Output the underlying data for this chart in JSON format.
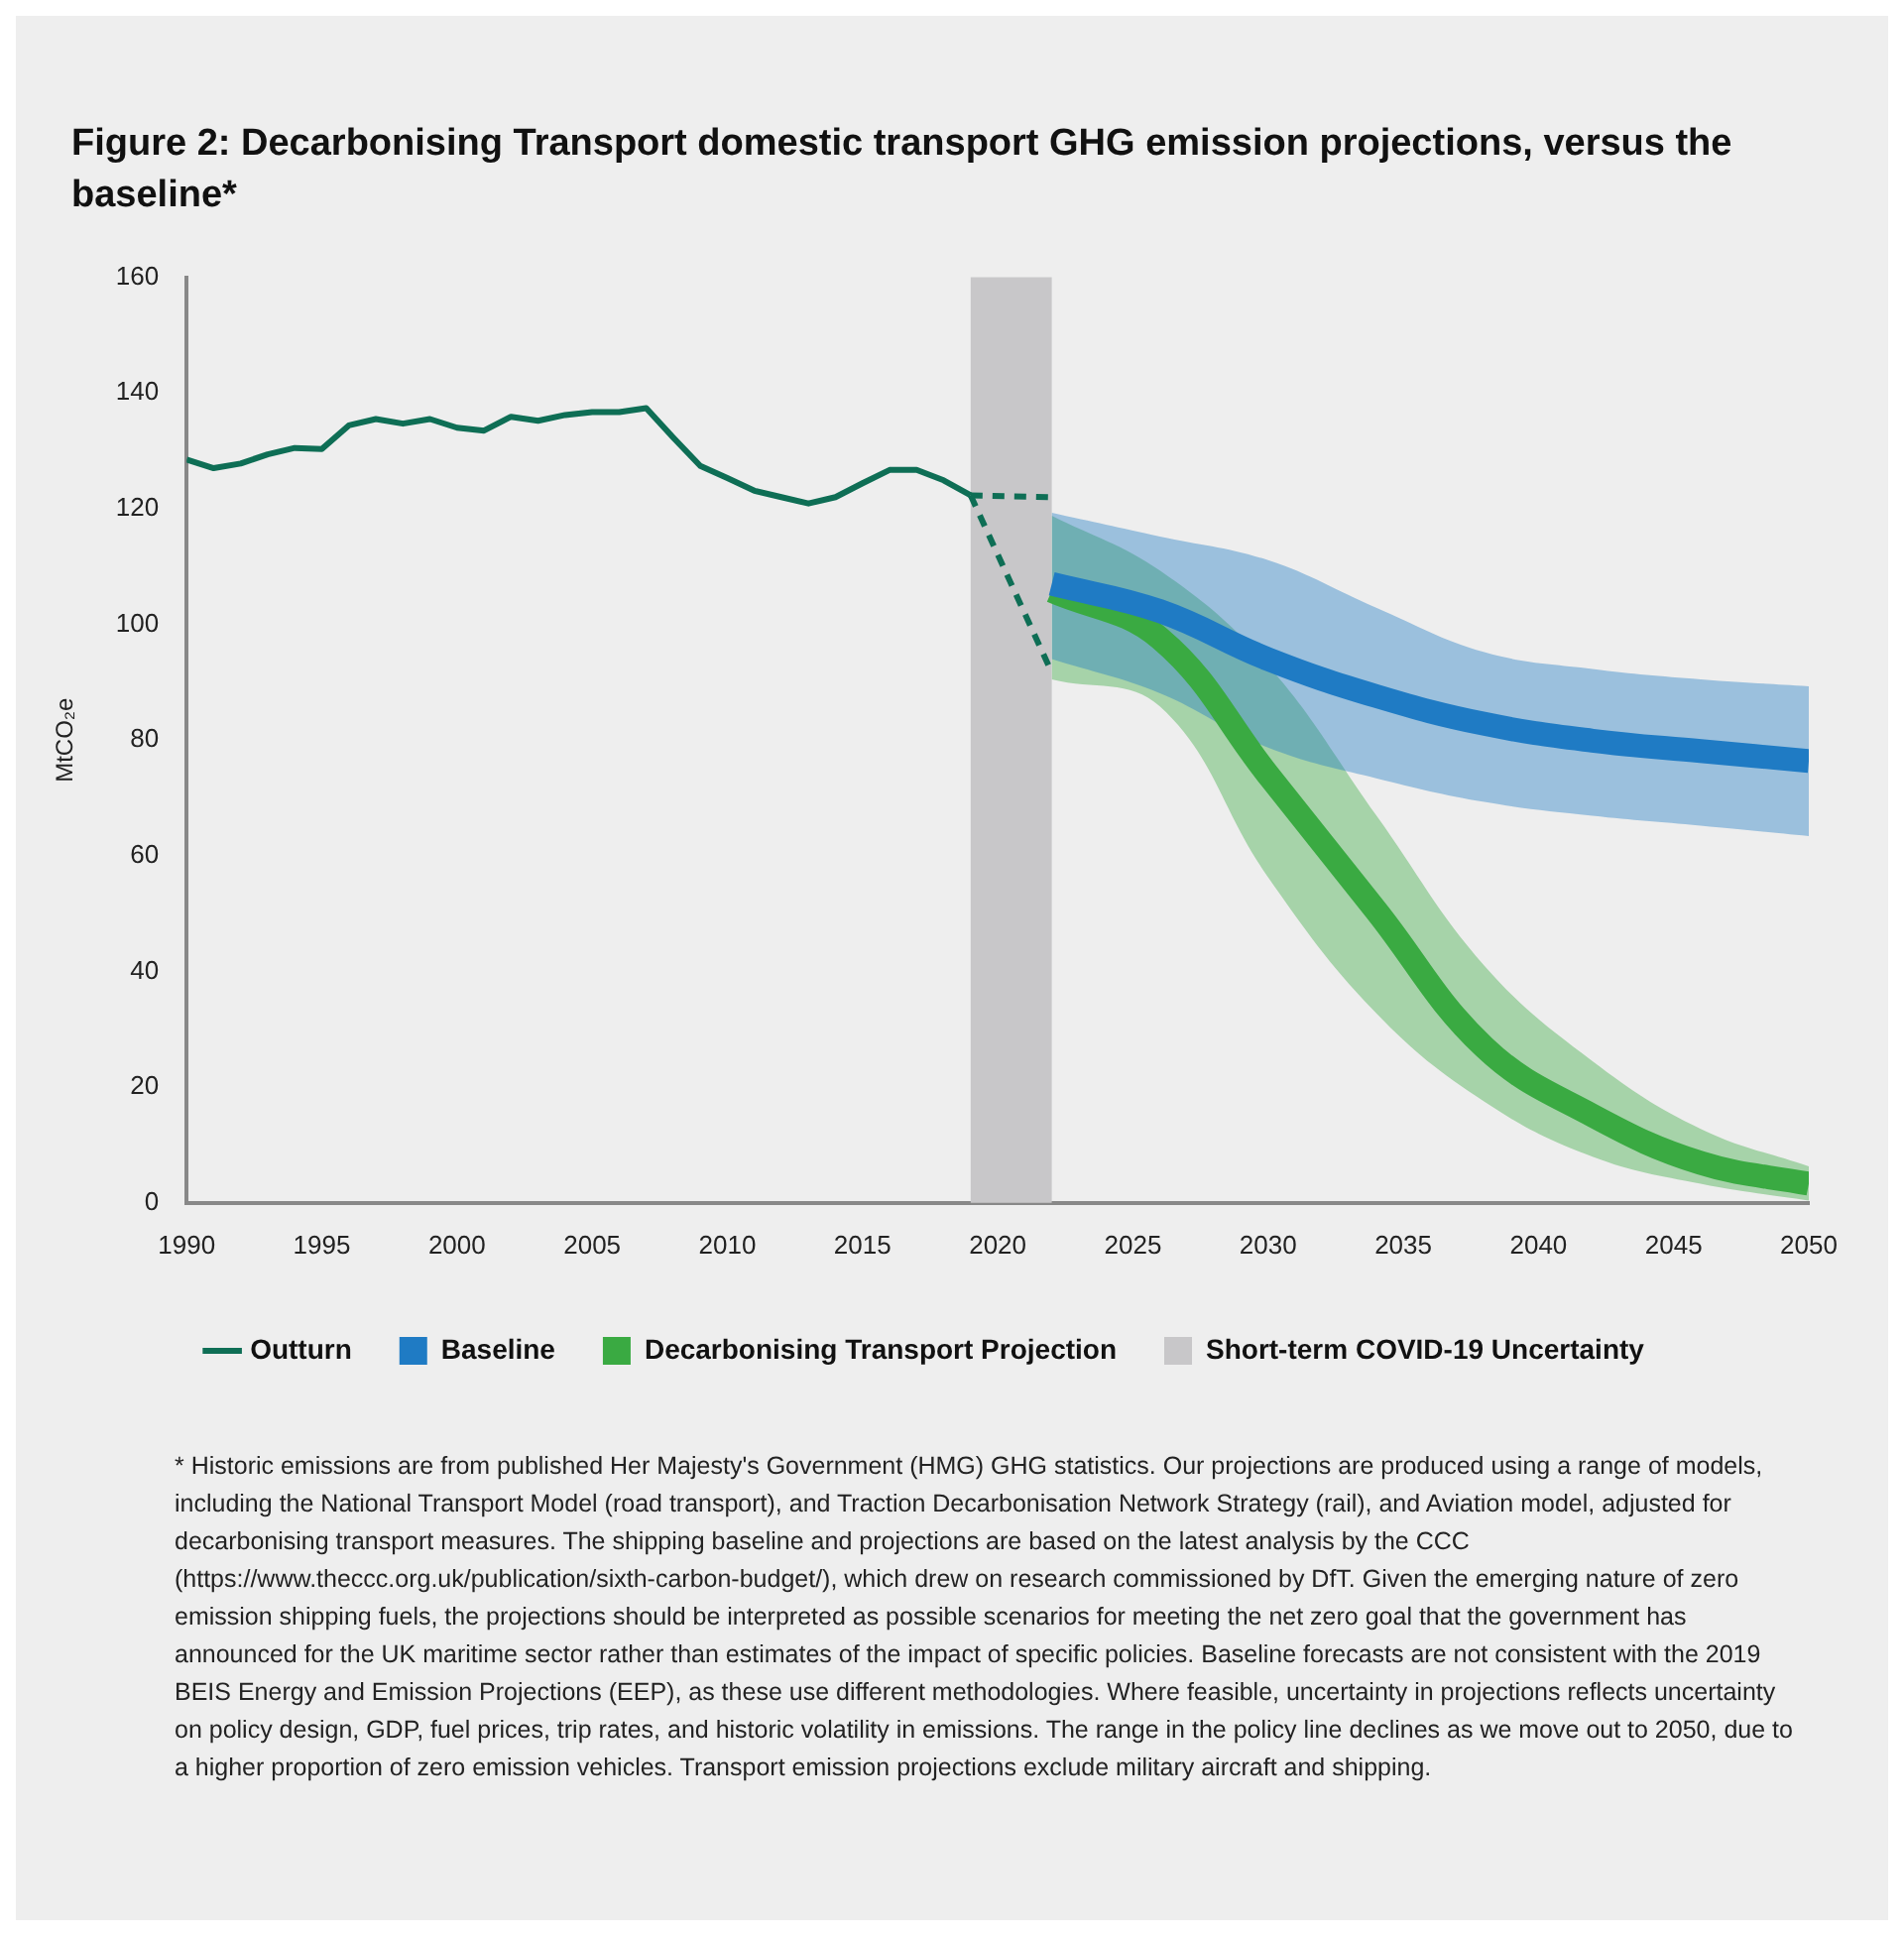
{
  "chart_data": {
    "type": "line",
    "title": "Figure 2: Decarbonising Transport domestic transport GHG emission projections, versus the baseline*",
    "ylabel": "MtCO₂e",
    "xlim": [
      1990,
      2050
    ],
    "xticks": [
      1990,
      1995,
      2000,
      2005,
      2010,
      2015,
      2020,
      2025,
      2030,
      2035,
      2040,
      2045,
      2050
    ],
    "ylim": [
      0,
      160
    ],
    "yticks": [
      0,
      20,
      40,
      60,
      80,
      100,
      120,
      140,
      160
    ],
    "grid": false,
    "legend": "bottom",
    "marker": "none",
    "series": [
      {
        "name": "Outturn",
        "type": "line",
        "color": "#0e6e55",
        "line_style": "solid",
        "x": [
          1990,
          1991,
          1992,
          1993,
          1994,
          1995,
          1996,
          1997,
          1998,
          1999,
          2000,
          2001,
          2002,
          2003,
          2004,
          2005,
          2006,
          2007,
          2008,
          2009,
          2010,
          2011,
          2012,
          2013,
          2014,
          2015,
          2016,
          2017,
          2018,
          2019
        ],
        "values": [
          128.5,
          127,
          127.8,
          129.4,
          130.5,
          130.3,
          134.4,
          135.5,
          134.7,
          135.5,
          134,
          133.5,
          135.9,
          135.2,
          136.2,
          136.7,
          136.7,
          137.4,
          132.3,
          127.4,
          125.3,
          123.1,
          122,
          120.9,
          122,
          124.4,
          126.7,
          126.7,
          124.9,
          122.3
        ]
      },
      {
        "type": "line",
        "color": "#0e6e55",
        "line_style": "dashed",
        "x": [
          2019,
          2022
        ],
        "values": [
          122.3,
          122
        ]
      },
      {
        "type": "line",
        "color": "#0e6e55",
        "line_style": "dashed",
        "x": [
          2019,
          2022
        ],
        "values": [
          122.3,
          91.7
        ]
      },
      {
        "name": "Baseline",
        "type": "line",
        "color": "#1f7bc4",
        "x": [
          2022,
          2026,
          2030,
          2034,
          2038,
          2042,
          2046,
          2050
        ],
        "values": [
          107,
          102.3,
          94,
          87.6,
          82.8,
          79.9,
          78.1,
          76.4
        ],
        "lower": [
          94,
          88.1,
          78.7,
          73.4,
          69.3,
          66.9,
          65.2,
          63.4
        ],
        "upper": [
          119.3,
          115.2,
          111.1,
          102.9,
          95.2,
          92.3,
          90.5,
          89.3
        ]
      },
      {
        "name": "Decarbonising Transport Projection",
        "type": "line",
        "color": "#3aaa42",
        "x": [
          2022,
          2026,
          2030,
          2034,
          2038,
          2042,
          2046,
          2050
        ],
        "values": [
          105.8,
          97.6,
          74,
          50.5,
          26.9,
          15.1,
          6.9,
          3.3
        ],
        "lower": [
          90.5,
          85.8,
          56.3,
          32.8,
          17.5,
          8,
          3.3,
          0.4
        ],
        "upper": [
          118.8,
          109.3,
          92.9,
          67,
          41,
          24.5,
          12.8,
          6.3
        ]
      }
    ],
    "bands": [
      {
        "axis": "x",
        "from": 2019,
        "to": 2022,
        "label": "Short-term COVID-19 Uncertainty",
        "color": "#c8c7c9"
      }
    ],
    "annotations": [
      "* Historic emissions are from published Her Majesty's Government (HMG) GHG statistics. Our projections are produced using a range of models, including the National Transport Model (road transport), and Traction Decarbonisation Network Strategy (rail), and Aviation model, adjusted for decarbonising transport measures. The shipping baseline and projections are based on the latest analysis by the CCC (https://www.theccc.org.uk/publication/sixth-carbon-budget/), which drew on research commissioned by DfT. Given the emerging nature of zero emission shipping fuels, the projections should be interpreted as possible scenarios for meeting the net zero goal that the government has announced for the UK maritime sector rather than estimates of the impact of specific policies. Baseline forecasts are not consistent with the 2019 BEIS Energy and Emission Projections (EEP), as these use different methodologies. Where feasible, uncertainty in projections reflects uncertainty on policy design, GDP, fuel prices, trip rates, and historic volatility in emissions. The range in the policy line declines as we move out to 2050, due to a higher proportion of zero emission vehicles. Transport emission projections exclude military aircraft and shipping."
    ]
  }
}
